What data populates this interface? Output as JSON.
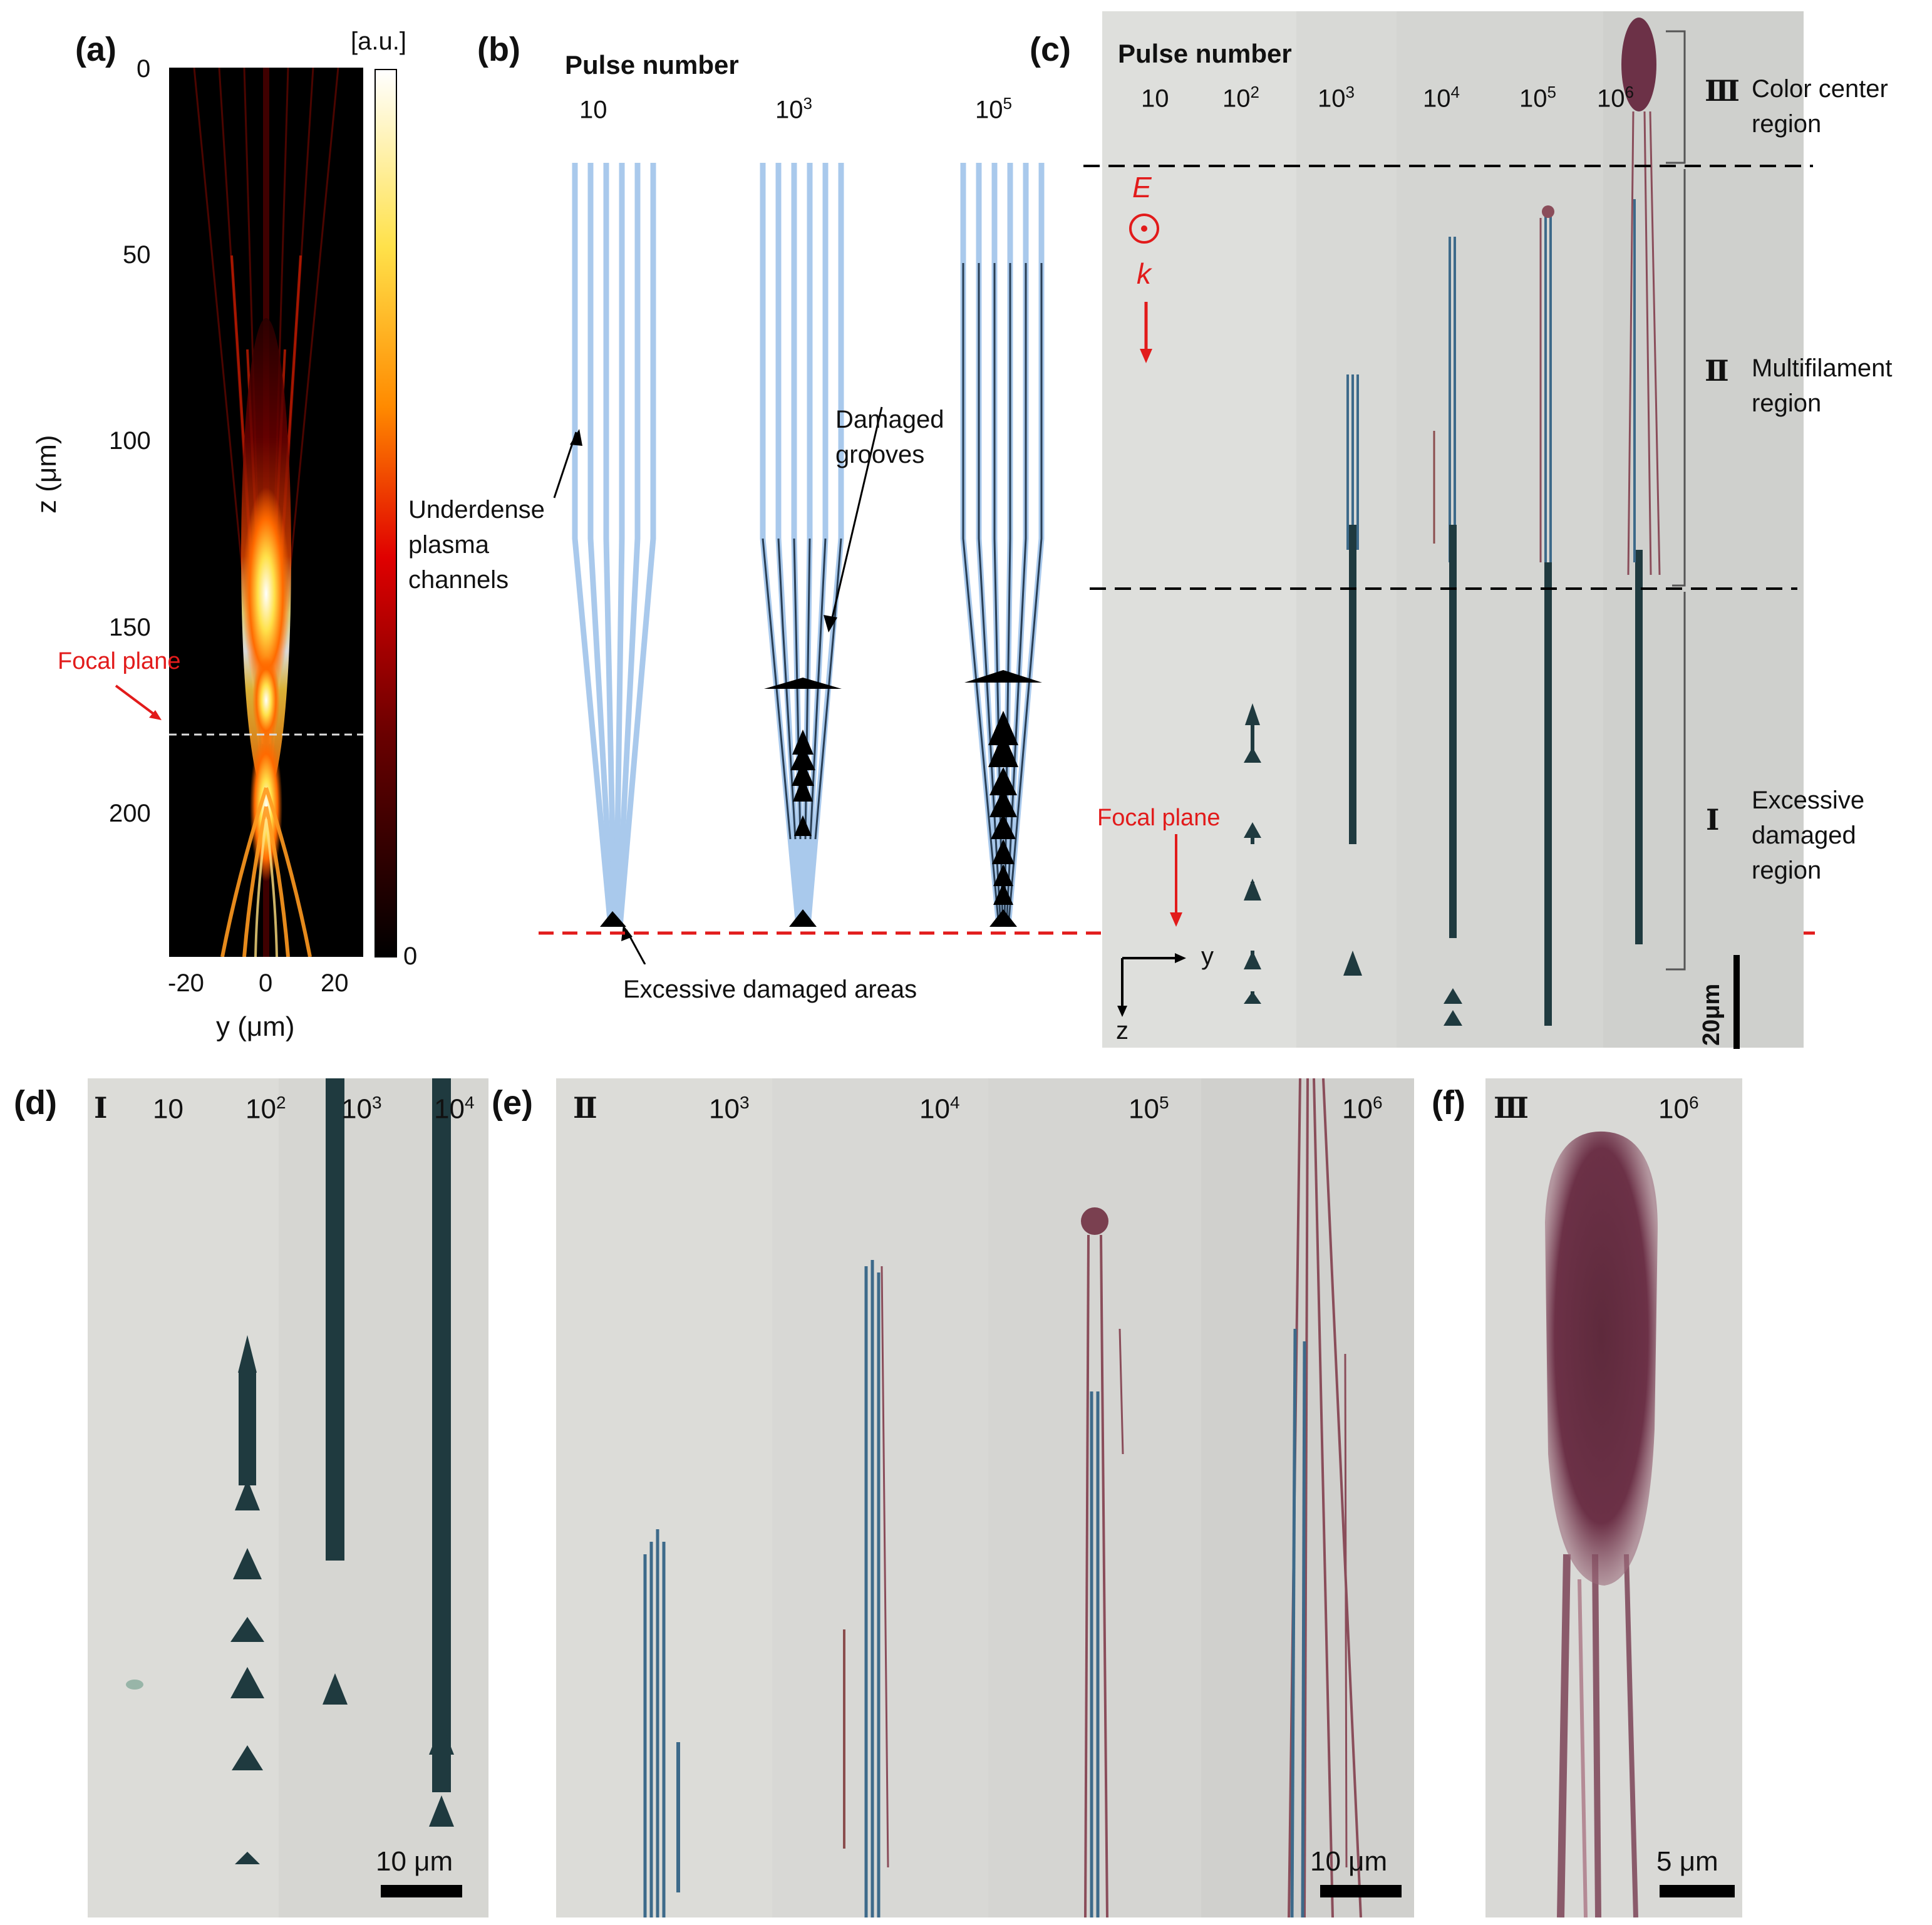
{
  "panels": {
    "a": {
      "label": "(a)",
      "colorbar_unit": "[a.u.]",
      "colorbar_min": "0",
      "z_ticks": [
        "0",
        "50",
        "100",
        "150",
        "200"
      ],
      "y_ticks": [
        "-20",
        "0",
        "20"
      ],
      "zlabel": "z (μm)",
      "ylabel": "y (μm)",
      "focal_label": "Focal plane"
    },
    "b": {
      "label": "(b)",
      "header": "Pulse number",
      "columns": [
        {
          "base": "10",
          "sup": ""
        },
        {
          "base": "10",
          "sup": "3"
        },
        {
          "base": "10",
          "sup": "5"
        }
      ],
      "annot_underdense": [
        "Underdense",
        "plasma",
        "channels"
      ],
      "annot_grooves": [
        "Damaged",
        "grooves"
      ],
      "annot_excessive": "Excessive damaged areas"
    },
    "c": {
      "label": "(c)",
      "header": "Pulse number",
      "columns": [
        {
          "base": "10",
          "sup": ""
        },
        {
          "base": "10",
          "sup": "2"
        },
        {
          "base": "10",
          "sup": "3"
        },
        {
          "base": "10",
          "sup": "4"
        },
        {
          "base": "10",
          "sup": "5"
        },
        {
          "base": "10",
          "sup": "6"
        }
      ],
      "E_label": "E",
      "k_label": "k",
      "regions": [
        {
          "numeral": "Ⅲ",
          "lines": [
            "Color center",
            "region"
          ]
        },
        {
          "numeral": "Ⅱ",
          "lines": [
            "Multifilament",
            "region"
          ]
        },
        {
          "numeral": "Ⅰ",
          "lines": [
            "Excessive",
            "damaged",
            "region"
          ]
        }
      ],
      "focal_label": "Focal plane",
      "axis_y": "y",
      "axis_z": "z",
      "scalebar": "20μm"
    },
    "d": {
      "label": "(d)",
      "numeral": "Ⅰ",
      "columns": [
        {
          "base": "10",
          "sup": ""
        },
        {
          "base": "10",
          "sup": "2"
        },
        {
          "base": "10",
          "sup": "3"
        },
        {
          "base": "10",
          "sup": "4"
        }
      ],
      "scalebar": "10 μm"
    },
    "e": {
      "label": "(e)",
      "numeral": "Ⅱ",
      "columns": [
        {
          "base": "10",
          "sup": "3"
        },
        {
          "base": "10",
          "sup": "4"
        },
        {
          "base": "10",
          "sup": "5"
        },
        {
          "base": "10",
          "sup": "6"
        }
      ],
      "scalebar": "10 μm"
    },
    "f": {
      "label": "(f)",
      "numeral": "Ⅲ",
      "columns": [
        {
          "base": "10",
          "sup": "6"
        }
      ],
      "scalebar": "5 μm"
    }
  },
  "colors": {
    "hot_dark": "#000000",
    "hot_red": "#b40000",
    "hot_orange": "#ff7a00",
    "hot_yellow": "#ffe14a",
    "channel_blue": "#a9c9ec",
    "focal_red": "#e21b1b",
    "micro_bg": "#dcdcd8",
    "damage_dark": "#1f3a3f",
    "colorcenter": "#6c3147"
  }
}
